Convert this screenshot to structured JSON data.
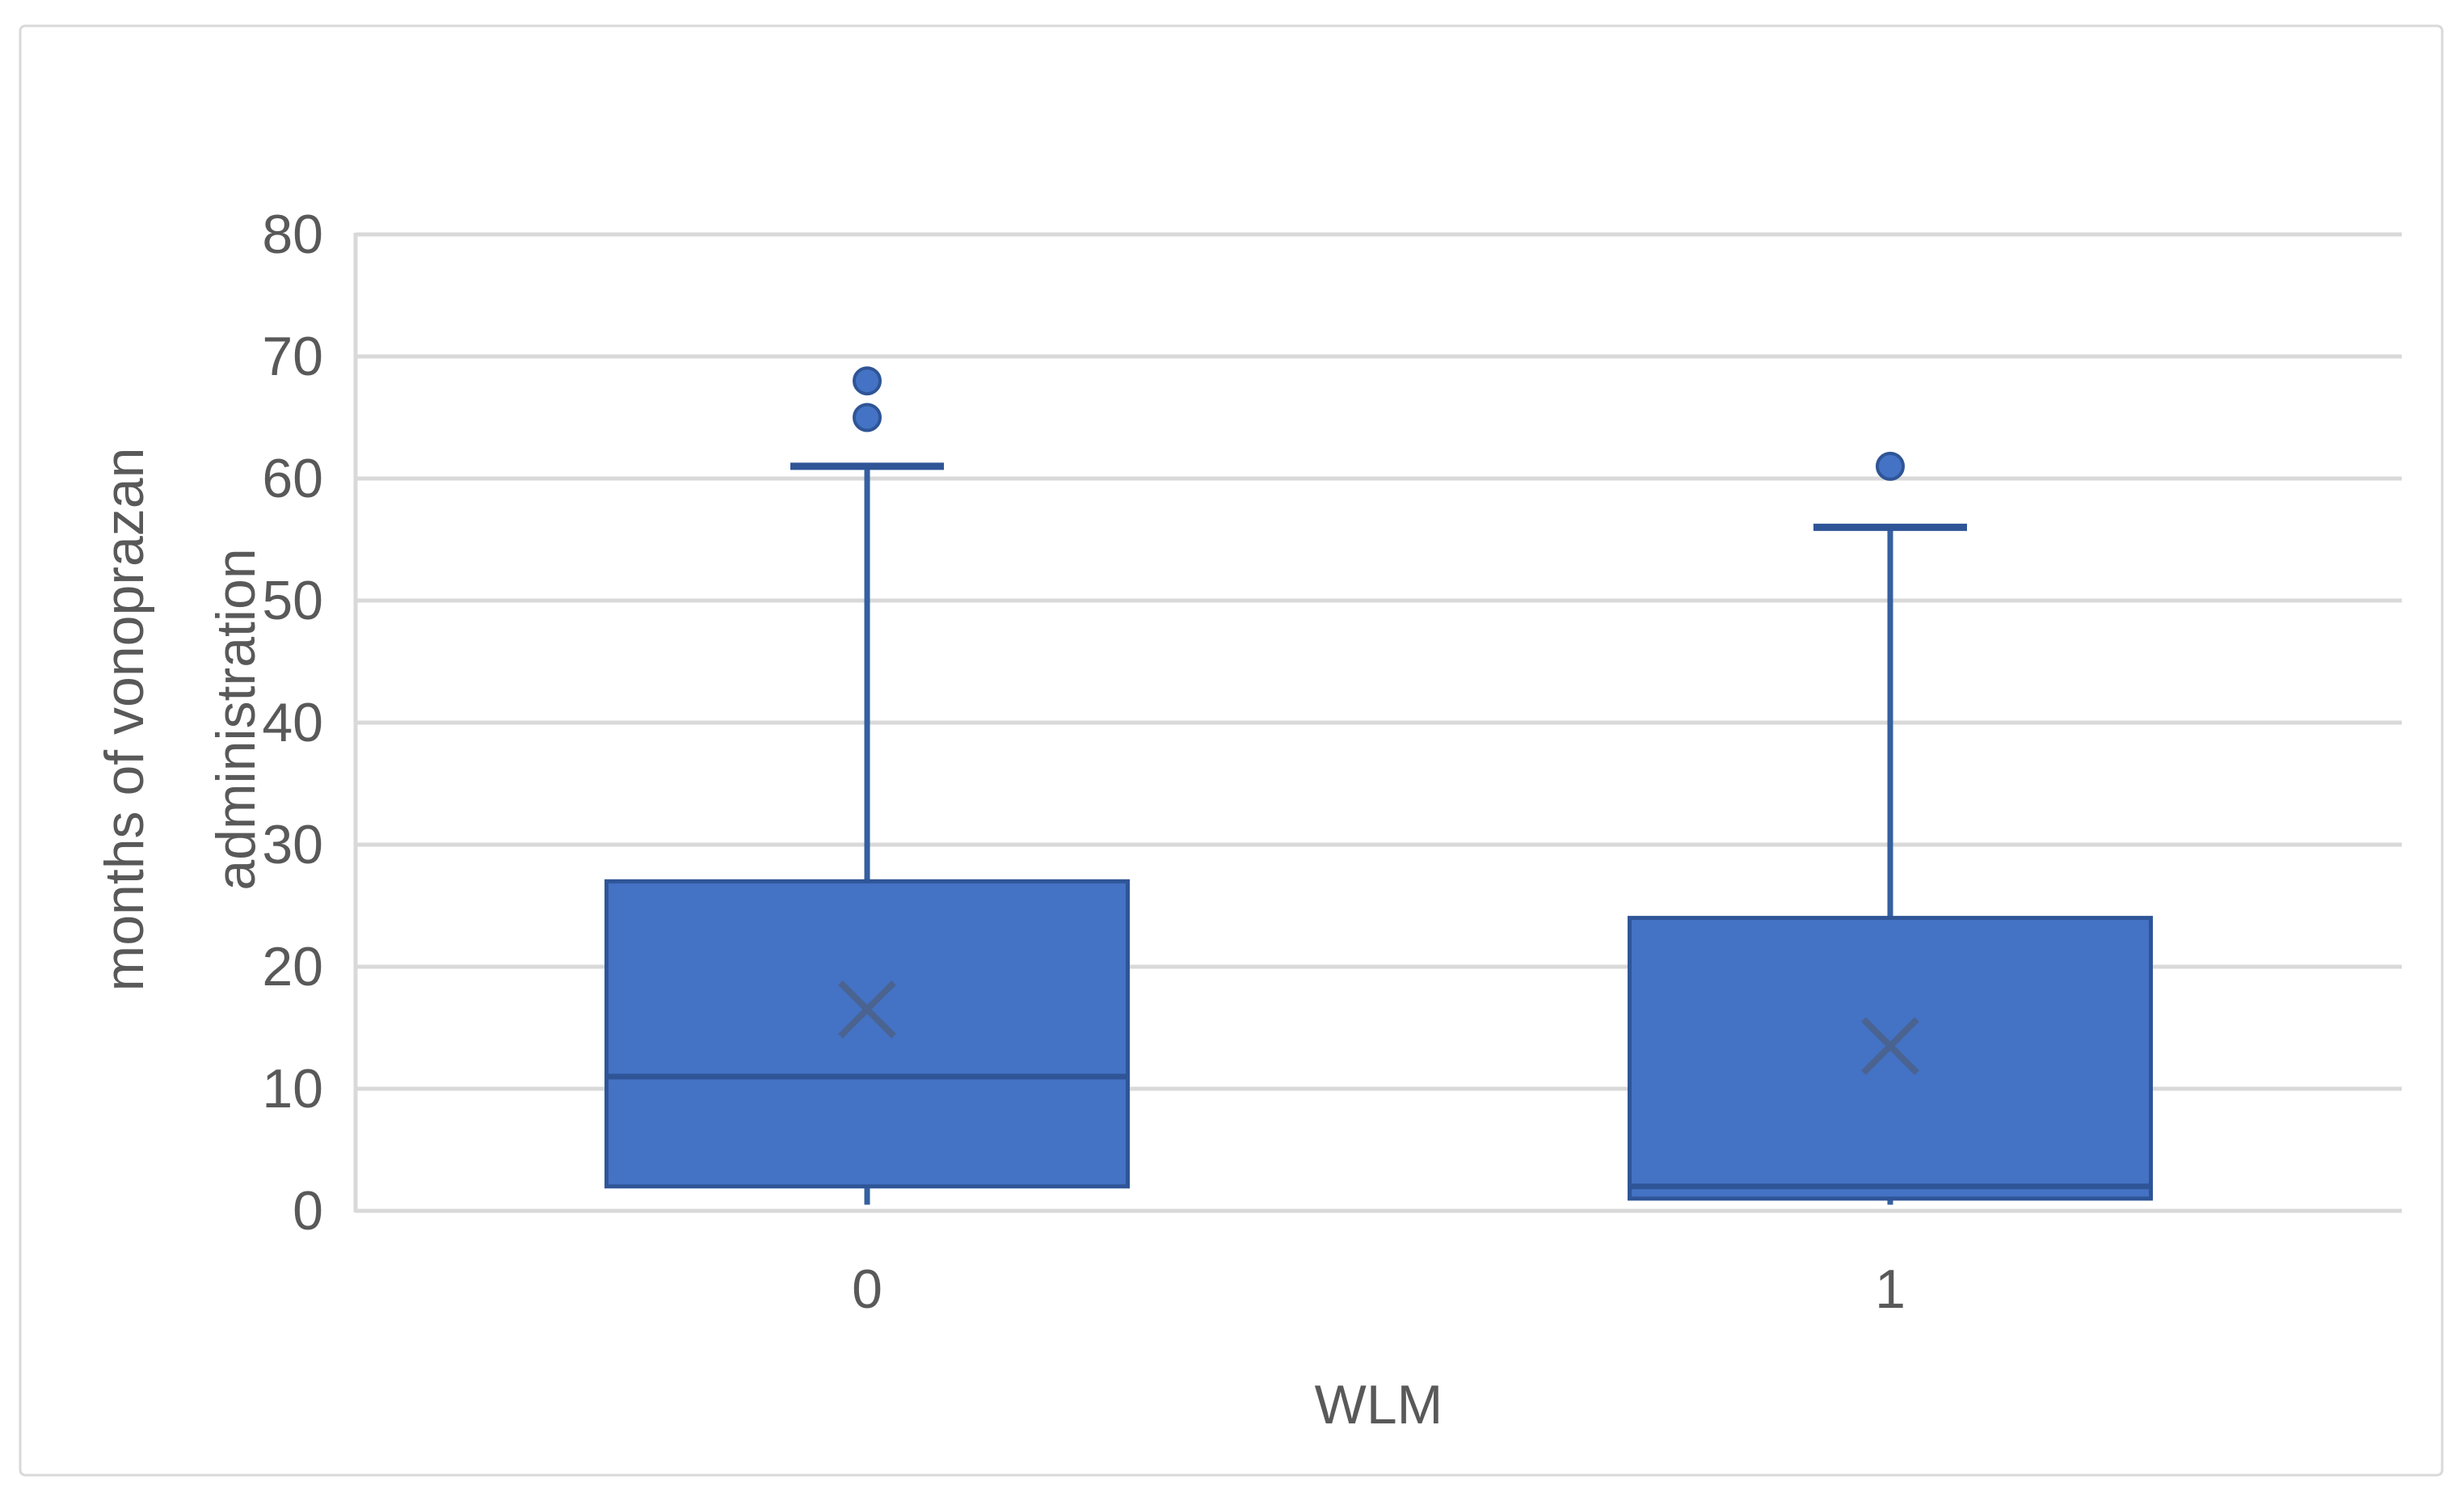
{
  "page": {
    "background": "#ffffff",
    "chart_border_color": "#D9D9D9"
  },
  "chart_data": {
    "type": "box",
    "title": "",
    "xlabel": "WLM",
    "ylabel_lines": [
      "months of vonoprazan",
      "administration"
    ],
    "ylim": [
      0,
      80
    ],
    "yticks": [
      0,
      10,
      20,
      30,
      40,
      50,
      60,
      70,
      80
    ],
    "grid": "horizontal-gridlines-on",
    "legend": "none",
    "categories": [
      "0",
      "1"
    ],
    "series": [
      {
        "category": "0",
        "min": 0.5,
        "q1": 2,
        "median": 11,
        "q3": 27,
        "max": 61,
        "mean": 16.5,
        "outliers": [
          65,
          68
        ]
      },
      {
        "category": "1",
        "min": 0.5,
        "q1": 1,
        "median": 2,
        "q3": 24,
        "max": 56,
        "mean": 13.5,
        "outliers": [
          61
        ]
      }
    ],
    "colors": {
      "box_fill": "#4472C4",
      "box_border": "#2F5597",
      "whisker": "#35609F",
      "median": "#2F5597",
      "mean_marker": "#4A6390",
      "outlier_fill": "#4472C4",
      "outlier_border": "#2F5597",
      "gridline": "#D9D9D9",
      "axis_line": "#D9D9D9",
      "text": "#595959"
    }
  }
}
